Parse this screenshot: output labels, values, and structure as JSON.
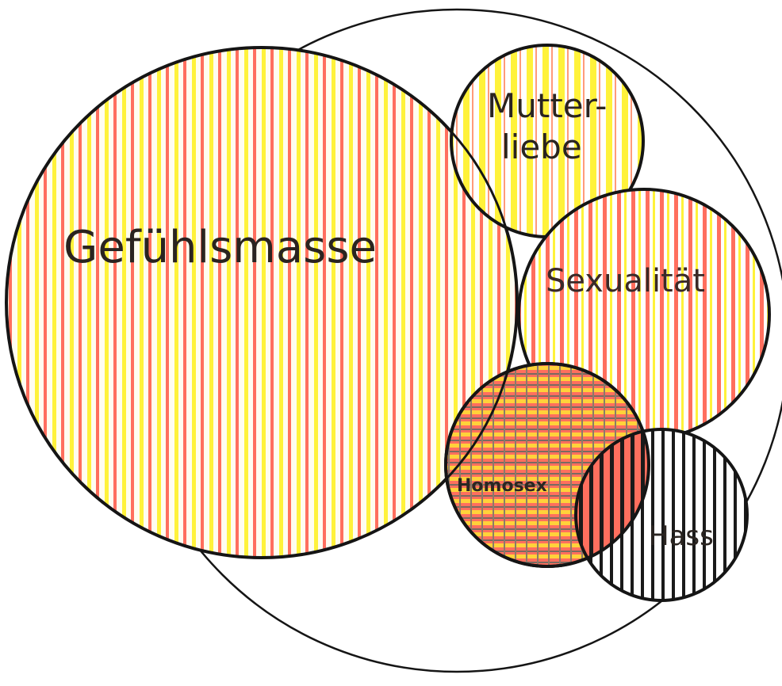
{
  "diagram": {
    "colors": {
      "yellow": "#fff23a",
      "red": "#ff6f5e",
      "black": "#151515",
      "background": "#ffffff"
    },
    "circles": [
      {
        "id": "outer",
        "label": "",
        "fill": "none"
      },
      {
        "id": "gefuehlsmasse",
        "label": "Gefühlsmasse",
        "fill": "yellow-red vertical stripes"
      },
      {
        "id": "mutterliebe",
        "label_line1": "Mutter-",
        "label_line2": "liebe",
        "fill": "yellow-white vertical stripes"
      },
      {
        "id": "sexualitaet",
        "label": "Sexualität",
        "fill": "red-white vertical stripes"
      },
      {
        "id": "homosex",
        "label": "Homosex",
        "fill": "red-yellow-gray crosshatch"
      },
      {
        "id": "hass",
        "label": "Hass",
        "fill": "black-white vertical stripes"
      }
    ]
  }
}
